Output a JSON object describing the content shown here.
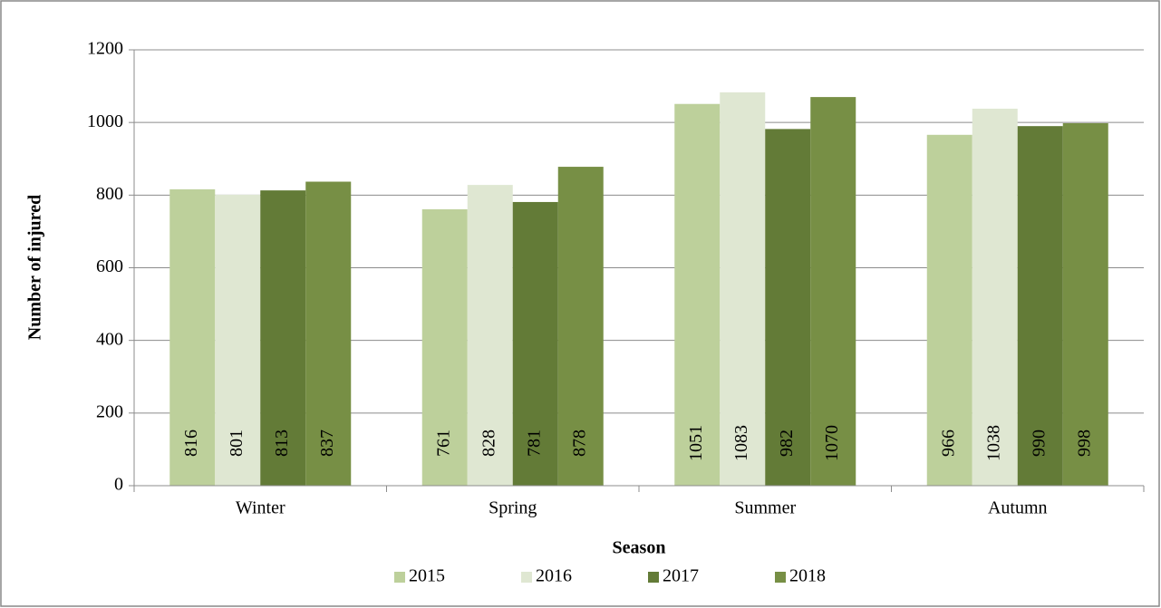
{
  "chart_data": {
    "type": "bar",
    "categories": [
      "Winter",
      "Spring",
      "Summer",
      "Autumn"
    ],
    "series": [
      {
        "name": "2015",
        "color": "#bdd09b",
        "values": [
          816,
          761,
          1051,
          966
        ]
      },
      {
        "name": "2016",
        "color": "#dfe7d2",
        "values": [
          801,
          828,
          1083,
          1038
        ]
      },
      {
        "name": "2017",
        "color": "#637b37",
        "values": [
          813,
          781,
          982,
          990
        ]
      },
      {
        "name": "2018",
        "color": "#778f45",
        "values": [
          837,
          878,
          1070,
          998
        ]
      }
    ],
    "xlabel": "Season",
    "ylabel": "Number of injured",
    "ylim": [
      0,
      1200
    ],
    "yticks": [
      0,
      200,
      400,
      600,
      800,
      1000,
      1200
    ],
    "grid": true,
    "legend": "bottom",
    "value_labels_inside": true
  }
}
